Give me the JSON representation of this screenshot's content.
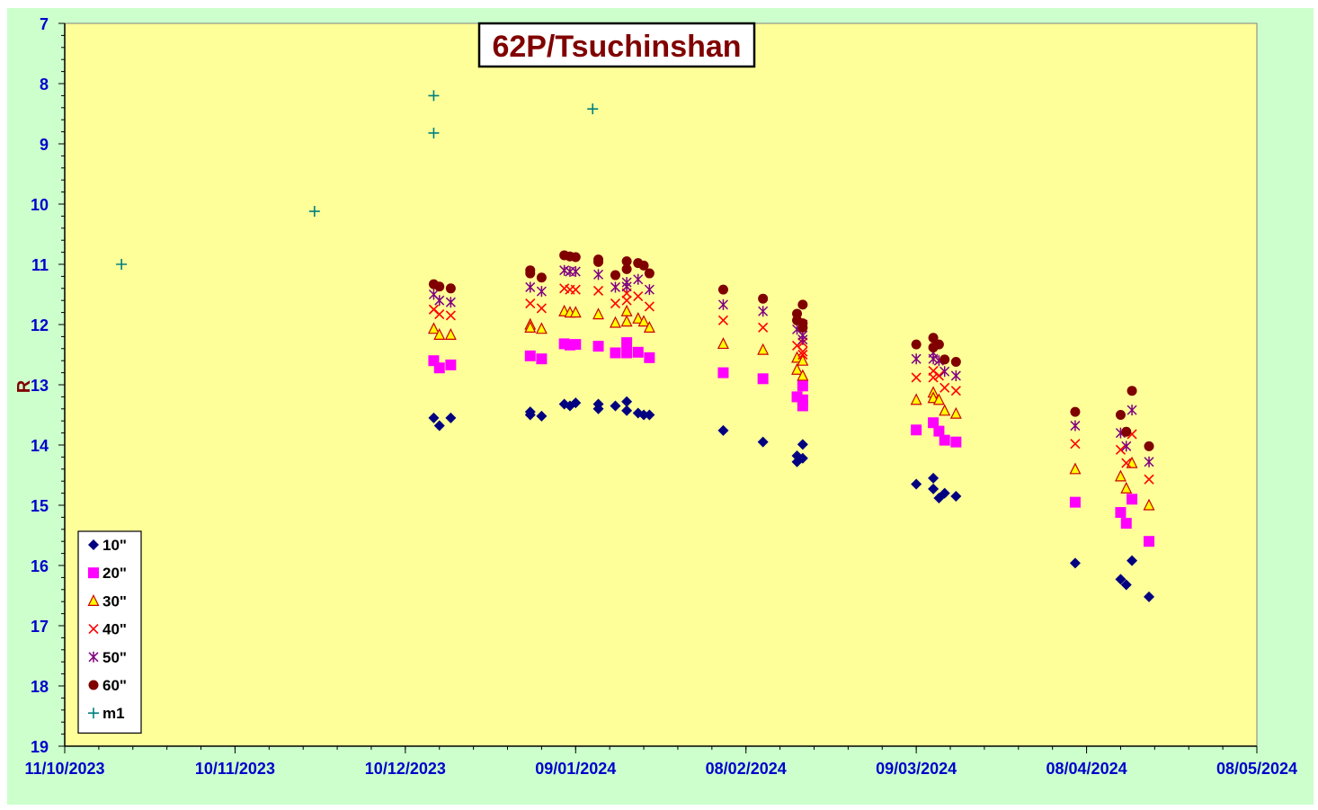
{
  "chart_data": {
    "type": "scatter",
    "title": "62P/Tsuchinshan",
    "xlabel": "",
    "ylabel": "R",
    "y_inverted": true,
    "ylim": [
      7,
      19
    ],
    "yticks": [
      7,
      8,
      9,
      10,
      11,
      12,
      13,
      14,
      15,
      16,
      17,
      18,
      19
    ],
    "xlim": [
      "2023-10-11",
      "2024-05-08"
    ],
    "xtick_labels": [
      "11/10/2023",
      "10/11/2023",
      "10/12/2023",
      "09/01/2024",
      "08/02/2024",
      "09/03/2024",
      "08/04/2024",
      "08/05/2024"
    ],
    "xtick_dates": [
      "2023-10-11",
      "2023-11-10",
      "2023-12-10",
      "2024-01-09",
      "2024-02-08",
      "2024-03-09",
      "2024-04-08",
      "2024-05-08"
    ],
    "grid": false,
    "legend_position": "bottom-left",
    "series": [
      {
        "name": "10\"",
        "marker": "diamond",
        "color": "#000080",
        "points": [
          [
            "2023-12-15",
            13.55
          ],
          [
            "2023-12-16",
            13.68
          ],
          [
            "2023-12-18",
            13.55
          ],
          [
            "2024-01-01",
            13.45
          ],
          [
            "2024-01-01",
            13.5
          ],
          [
            "2024-01-03",
            13.52
          ],
          [
            "2024-01-07",
            13.32
          ],
          [
            "2024-01-08",
            13.35
          ],
          [
            "2024-01-09",
            13.3
          ],
          [
            "2024-01-13",
            13.32
          ],
          [
            "2024-01-13",
            13.4
          ],
          [
            "2024-01-16",
            13.35
          ],
          [
            "2024-01-18",
            13.28
          ],
          [
            "2024-01-18",
            13.43
          ],
          [
            "2024-01-20",
            13.47
          ],
          [
            "2024-01-21",
            13.5
          ],
          [
            "2024-01-22",
            13.5
          ],
          [
            "2024-02-04",
            13.76
          ],
          [
            "2024-02-11",
            13.95
          ],
          [
            "2024-02-17",
            14.28
          ],
          [
            "2024-02-17",
            14.18
          ],
          [
            "2024-02-18",
            14.22
          ],
          [
            "2024-02-18",
            13.99
          ],
          [
            "2024-03-09",
            14.65
          ],
          [
            "2024-03-12",
            14.55
          ],
          [
            "2024-03-12",
            14.73
          ],
          [
            "2024-03-13",
            14.88
          ],
          [
            "2024-03-14",
            14.8
          ],
          [
            "2024-03-16",
            14.85
          ],
          [
            "2024-04-06",
            15.96
          ],
          [
            "2024-04-14",
            16.23
          ],
          [
            "2024-04-15",
            16.32
          ],
          [
            "2024-04-16",
            15.92
          ],
          [
            "2024-04-19",
            16.52
          ]
        ]
      },
      {
        "name": "20\"",
        "marker": "square",
        "color": "#ff00ff",
        "points": [
          [
            "2023-12-15",
            12.6
          ],
          [
            "2023-12-16",
            12.72
          ],
          [
            "2023-12-18",
            12.67
          ],
          [
            "2024-01-01",
            12.52
          ],
          [
            "2024-01-03",
            12.57
          ],
          [
            "2024-01-07",
            12.32
          ],
          [
            "2024-01-08",
            12.34
          ],
          [
            "2024-01-09",
            12.33
          ],
          [
            "2024-01-13",
            12.36
          ],
          [
            "2024-01-16",
            12.47
          ],
          [
            "2024-01-18",
            12.3
          ],
          [
            "2024-01-18",
            12.47
          ],
          [
            "2024-01-20",
            12.46
          ],
          [
            "2024-01-22",
            12.55
          ],
          [
            "2024-02-04",
            12.8
          ],
          [
            "2024-02-11",
            12.9
          ],
          [
            "2024-02-17",
            13.2
          ],
          [
            "2024-02-18",
            13.25
          ],
          [
            "2024-02-18",
            13.35
          ],
          [
            "2024-02-18",
            13.02
          ],
          [
            "2024-03-09",
            13.75
          ],
          [
            "2024-03-12",
            13.63
          ],
          [
            "2024-03-13",
            13.77
          ],
          [
            "2024-03-14",
            13.92
          ],
          [
            "2024-03-16",
            13.95
          ],
          [
            "2024-04-06",
            14.95
          ],
          [
            "2024-04-14",
            15.12
          ],
          [
            "2024-04-15",
            15.3
          ],
          [
            "2024-04-16",
            14.9
          ],
          [
            "2024-04-19",
            15.6
          ]
        ]
      },
      {
        "name": "30\"",
        "marker": "triangle",
        "color": "#ffff00",
        "stroke": "#cc0000",
        "points": [
          [
            "2023-12-15",
            12.07
          ],
          [
            "2023-12-16",
            12.17
          ],
          [
            "2023-12-18",
            12.17
          ],
          [
            "2024-01-01",
            12.0
          ],
          [
            "2024-01-01",
            12.05
          ],
          [
            "2024-01-03",
            12.07
          ],
          [
            "2024-01-07",
            11.78
          ],
          [
            "2024-01-08",
            11.8
          ],
          [
            "2024-01-09",
            11.8
          ],
          [
            "2024-01-13",
            11.83
          ],
          [
            "2024-01-16",
            11.97
          ],
          [
            "2024-01-18",
            11.78
          ],
          [
            "2024-01-18",
            11.95
          ],
          [
            "2024-01-20",
            11.9
          ],
          [
            "2024-01-21",
            11.95
          ],
          [
            "2024-01-22",
            12.05
          ],
          [
            "2024-02-04",
            12.32
          ],
          [
            "2024-02-11",
            12.42
          ],
          [
            "2024-02-17",
            12.75
          ],
          [
            "2024-02-17",
            12.55
          ],
          [
            "2024-02-18",
            12.85
          ],
          [
            "2024-02-18",
            12.6
          ],
          [
            "2024-03-09",
            13.25
          ],
          [
            "2024-03-12",
            13.13
          ],
          [
            "2024-03-12",
            13.22
          ],
          [
            "2024-03-13",
            13.25
          ],
          [
            "2024-03-14",
            13.43
          ],
          [
            "2024-03-16",
            13.48
          ],
          [
            "2024-04-06",
            14.4
          ],
          [
            "2024-04-14",
            14.52
          ],
          [
            "2024-04-15",
            14.72
          ],
          [
            "2024-04-16",
            14.3
          ],
          [
            "2024-04-19",
            15.0
          ]
        ]
      },
      {
        "name": "40\"",
        "marker": "x",
        "color": "#ff0000",
        "points": [
          [
            "2023-12-15",
            11.75
          ],
          [
            "2023-12-16",
            11.83
          ],
          [
            "2023-12-18",
            11.85
          ],
          [
            "2024-01-01",
            11.65
          ],
          [
            "2024-01-03",
            11.73
          ],
          [
            "2024-01-07",
            11.4
          ],
          [
            "2024-01-08",
            11.42
          ],
          [
            "2024-01-09",
            11.42
          ],
          [
            "2024-01-13",
            11.44
          ],
          [
            "2024-01-16",
            11.65
          ],
          [
            "2024-01-18",
            11.48
          ],
          [
            "2024-01-18",
            11.6
          ],
          [
            "2024-01-20",
            11.53
          ],
          [
            "2024-01-22",
            11.7
          ],
          [
            "2024-02-04",
            11.93
          ],
          [
            "2024-02-11",
            12.05
          ],
          [
            "2024-02-17",
            12.35
          ],
          [
            "2024-02-18",
            12.45
          ],
          [
            "2024-02-18",
            12.5
          ],
          [
            "2024-02-18",
            12.3
          ],
          [
            "2024-03-09",
            12.88
          ],
          [
            "2024-03-12",
            12.77
          ],
          [
            "2024-03-12",
            12.88
          ],
          [
            "2024-03-13",
            12.85
          ],
          [
            "2024-03-14",
            13.05
          ],
          [
            "2024-03-16",
            13.1
          ],
          [
            "2024-04-06",
            13.98
          ],
          [
            "2024-04-14",
            14.08
          ],
          [
            "2024-04-15",
            14.3
          ],
          [
            "2024-04-16",
            13.82
          ],
          [
            "2024-04-19",
            14.57
          ]
        ]
      },
      {
        "name": "50\"",
        "marker": "star",
        "color": "#800080",
        "points": [
          [
            "2023-12-15",
            11.5
          ],
          [
            "2023-12-16",
            11.6
          ],
          [
            "2023-12-18",
            11.63
          ],
          [
            "2024-01-01",
            11.38
          ],
          [
            "2024-01-03",
            11.45
          ],
          [
            "2024-01-07",
            11.1
          ],
          [
            "2024-01-08",
            11.12
          ],
          [
            "2024-01-09",
            11.12
          ],
          [
            "2024-01-13",
            11.17
          ],
          [
            "2024-01-16",
            11.38
          ],
          [
            "2024-01-18",
            11.3
          ],
          [
            "2024-01-18",
            11.37
          ],
          [
            "2024-01-20",
            11.25
          ],
          [
            "2024-01-22",
            11.42
          ],
          [
            "2024-02-04",
            11.67
          ],
          [
            "2024-02-11",
            11.78
          ],
          [
            "2024-02-17",
            12.08
          ],
          [
            "2024-02-18",
            12.18
          ],
          [
            "2024-02-18",
            12.25
          ],
          [
            "2024-02-18",
            12.0
          ],
          [
            "2024-03-09",
            12.57
          ],
          [
            "2024-03-12",
            12.47
          ],
          [
            "2024-03-12",
            12.57
          ],
          [
            "2024-03-13",
            12.6
          ],
          [
            "2024-03-14",
            12.78
          ],
          [
            "2024-03-16",
            12.85
          ],
          [
            "2024-04-06",
            13.68
          ],
          [
            "2024-04-14",
            13.8
          ],
          [
            "2024-04-15",
            14.02
          ],
          [
            "2024-04-16",
            13.42
          ],
          [
            "2024-04-19",
            14.28
          ]
        ]
      },
      {
        "name": "60\"",
        "marker": "circle",
        "color": "#800000",
        "points": [
          [
            "2023-12-15",
            11.33
          ],
          [
            "2023-12-16",
            11.37
          ],
          [
            "2023-12-18",
            11.4
          ],
          [
            "2024-01-01",
            11.1
          ],
          [
            "2024-01-01",
            11.15
          ],
          [
            "2024-01-03",
            11.22
          ],
          [
            "2024-01-07",
            10.85
          ],
          [
            "2024-01-08",
            10.87
          ],
          [
            "2024-01-09",
            10.88
          ],
          [
            "2024-01-13",
            10.92
          ],
          [
            "2024-01-13",
            10.96
          ],
          [
            "2024-01-16",
            11.18
          ],
          [
            "2024-01-18",
            10.95
          ],
          [
            "2024-01-18",
            11.08
          ],
          [
            "2024-01-20",
            10.98
          ],
          [
            "2024-01-21",
            11.02
          ],
          [
            "2024-01-22",
            11.15
          ],
          [
            "2024-02-04",
            11.42
          ],
          [
            "2024-02-11",
            11.57
          ],
          [
            "2024-02-17",
            11.82
          ],
          [
            "2024-02-17",
            11.93
          ],
          [
            "2024-02-18",
            11.67
          ],
          [
            "2024-02-18",
            11.98
          ],
          [
            "2024-02-18",
            12.05
          ],
          [
            "2024-03-09",
            12.33
          ],
          [
            "2024-03-12",
            12.22
          ],
          [
            "2024-03-12",
            12.38
          ],
          [
            "2024-03-13",
            12.33
          ],
          [
            "2024-03-14",
            12.58
          ],
          [
            "2024-03-16",
            12.62
          ],
          [
            "2024-04-06",
            13.45
          ],
          [
            "2024-04-14",
            13.5
          ],
          [
            "2024-04-15",
            13.78
          ],
          [
            "2024-04-16",
            13.1
          ],
          [
            "2024-04-19",
            14.02
          ]
        ]
      },
      {
        "name": "m1",
        "marker": "plus",
        "color": "#008080",
        "points": [
          [
            "2023-10-21",
            11.0
          ],
          [
            "2023-11-24",
            10.12
          ],
          [
            "2023-12-15",
            8.2
          ],
          [
            "2023-12-15",
            8.82
          ],
          [
            "2024-01-12",
            8.42
          ]
        ]
      }
    ]
  }
}
